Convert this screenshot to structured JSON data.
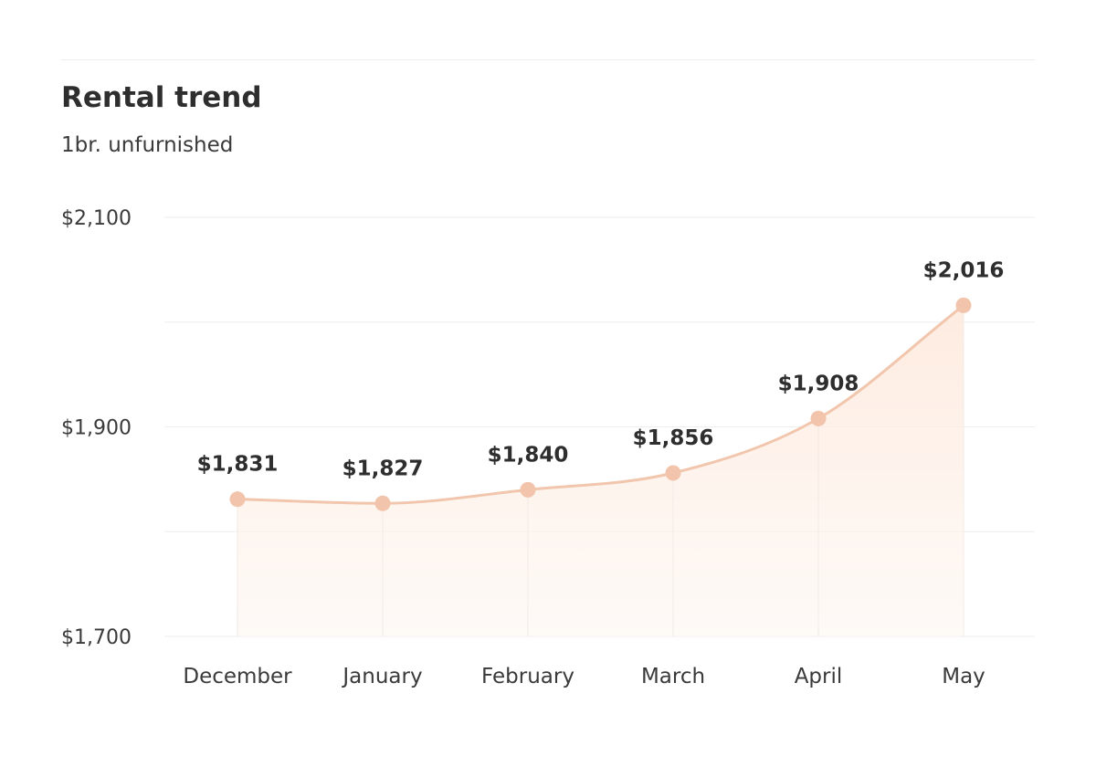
{
  "colors": {
    "line": "#f1c6ad",
    "marker": "#f2c4ab",
    "area": "#fdeee5",
    "grid": "#eeeeee",
    "drop_line": "#f1eae6"
  },
  "chart_data": {
    "type": "area",
    "title": "Rental trend",
    "subtitle": "1br. unfurnished",
    "categories": [
      "December",
      "January",
      "February",
      "March",
      "April",
      "May"
    ],
    "series": [
      {
        "values": [
          1831,
          1827,
          1840,
          1856,
          1908,
          2016
        ],
        "labels": [
          "$1,831",
          "$1,827",
          "$1,840",
          "$1,856",
          "$1,908",
          "$2,016"
        ]
      }
    ],
    "ylim": [
      1700,
      2100
    ],
    "yticks": [
      1700,
      1900,
      2100
    ],
    "ytick_labels": [
      "$1,700",
      "$1,900",
      "$2,100"
    ],
    "grid_values": [
      1700,
      1800,
      1900,
      2000,
      2100
    ],
    "grid": true,
    "legend": "none",
    "curve": "smooth"
  }
}
